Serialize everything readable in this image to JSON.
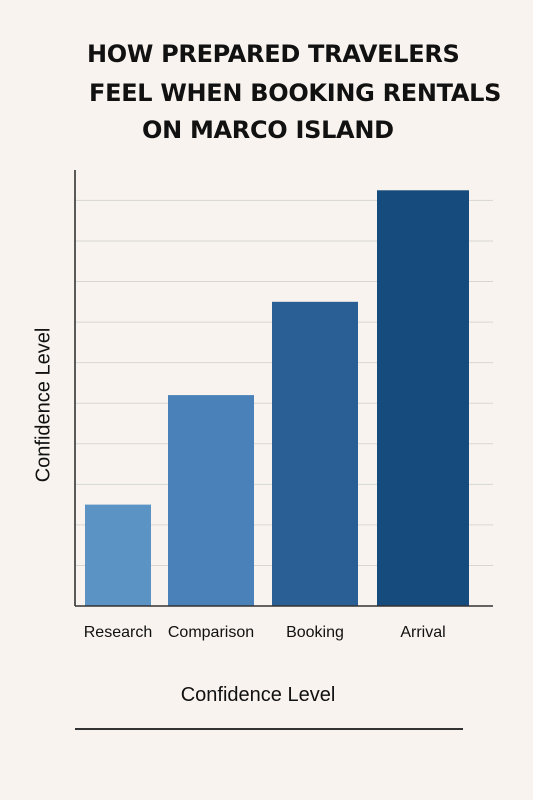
{
  "chart_data": {
    "type": "bar",
    "title_lines": [
      "HOW PREPARED TRAVELERS",
      "FEEL WHEN BOOKING RENTALS",
      "ON MARCO ISLAND"
    ],
    "xlabel": "Confidence Level",
    "ylabel": "Confidence Level",
    "categories": [
      "Research",
      "Comparison",
      "Booking",
      "Arrival"
    ],
    "values": [
      2.5,
      5.2,
      7.5,
      10.25
    ],
    "ylim": [
      0,
      10.75
    ],
    "grid": true,
    "colors": [
      "#5b93c5",
      "#4a81b8",
      "#2a5f95",
      "#164c7d"
    ]
  }
}
